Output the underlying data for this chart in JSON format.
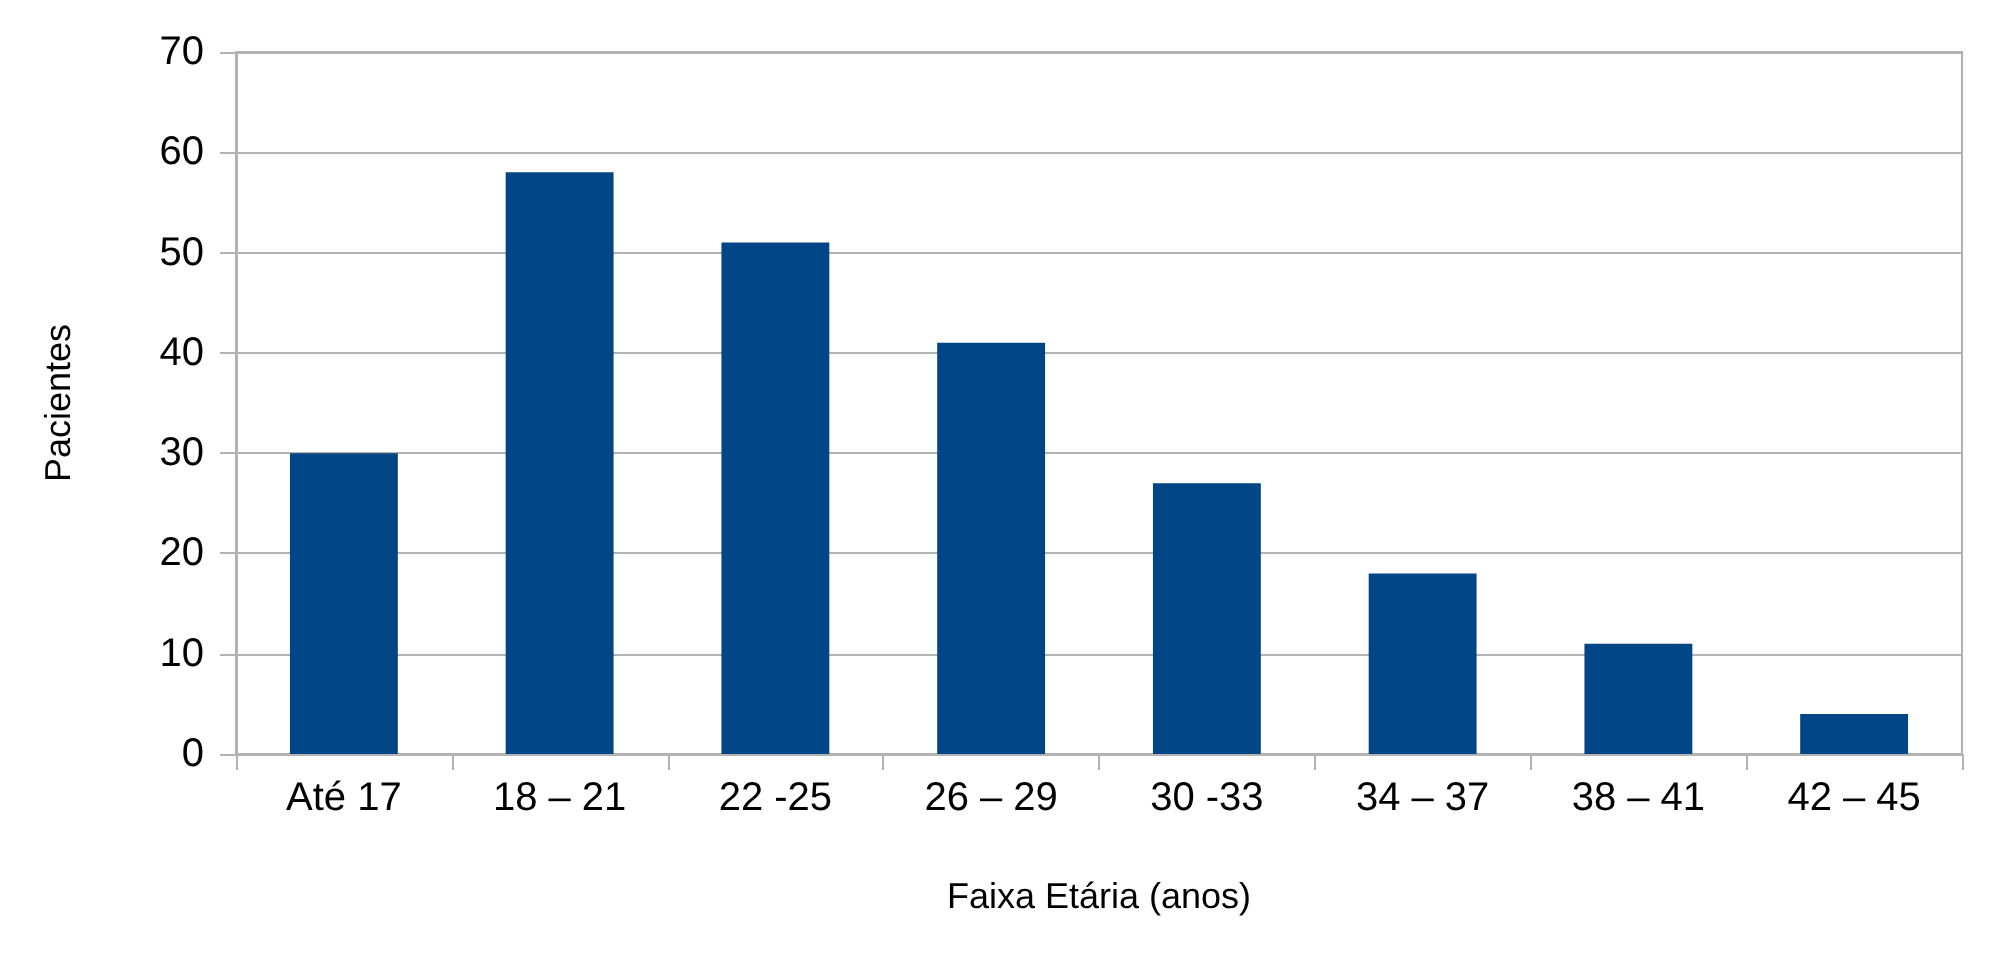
{
  "chart_data": {
    "type": "bar",
    "xlabel": "Faixa Etária (anos)",
    "ylabel": "Pacientes",
    "categories": [
      "Até 17",
      "18 – 21",
      "22 -25",
      "26 – 29",
      "30 -33",
      "34 – 37",
      "38 – 41",
      "42 – 45"
    ],
    "values": [
      30,
      58,
      51,
      41,
      27,
      18,
      11,
      4
    ],
    "color": "#004586",
    "ylim": [
      0,
      70
    ],
    "yticks": [
      0,
      10,
      20,
      30,
      40,
      50,
      60,
      70
    ],
    "grid": "y"
  }
}
